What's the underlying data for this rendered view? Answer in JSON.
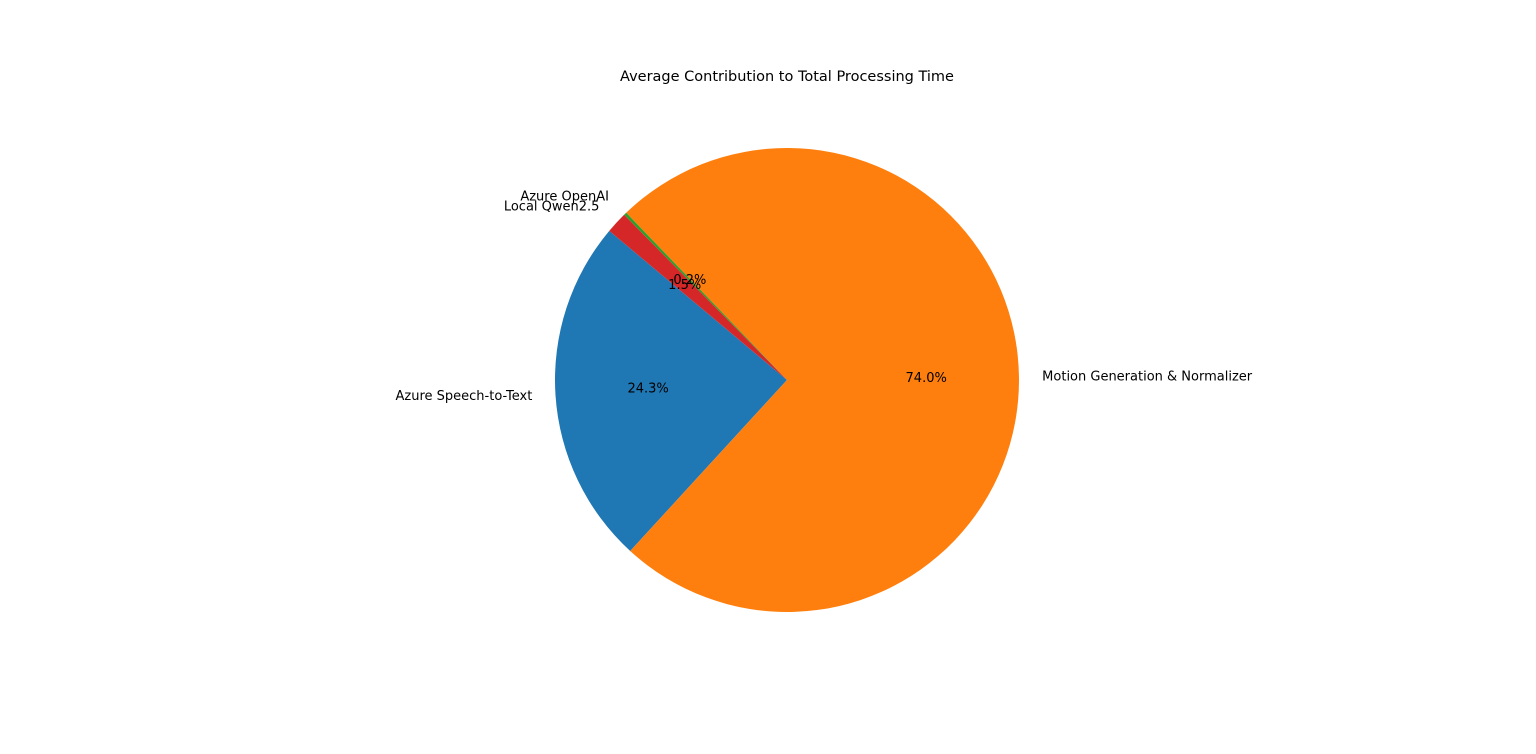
{
  "chart_data": {
    "type": "pie",
    "title": "Average Contribution to Total Processing Time",
    "start_angle_deg": 140,
    "direction": "counterclockwise",
    "slices": [
      {
        "label": "Azure Speech-to-Text",
        "value": 24.3,
        "pct_label": "24.3%",
        "color": "#1f77b4"
      },
      {
        "label": "Motion Generation & Normalizer",
        "value": 74.0,
        "pct_label": "74.0%",
        "color": "#ff7f0e"
      },
      {
        "label": "Azure OpenAI",
        "value": 0.2,
        "pct_label": "0.2%",
        "color": "#2ca02c"
      },
      {
        "label": "Local Qwen2.5",
        "value": 1.5,
        "pct_label": "1.5%",
        "color": "#d62728"
      }
    ],
    "legend": "none"
  }
}
